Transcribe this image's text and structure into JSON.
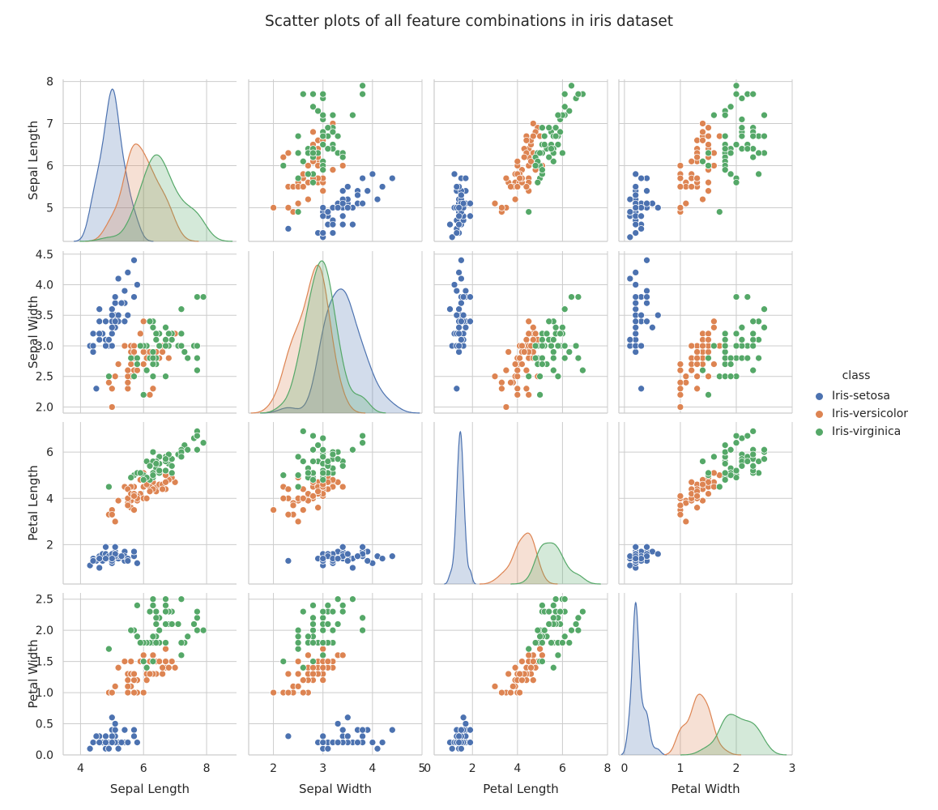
{
  "title": "Scatter plots of all feature combinations in iris dataset",
  "colors": {
    "background": "#ffffff",
    "grid": "#cccccc",
    "axis_text": "#262626",
    "Iris-setosa": "#4c72b0",
    "Iris-versicolor": "#dd8452",
    "Iris-virginica": "#55a868"
  },
  "legend": {
    "title": "class",
    "items": [
      {
        "label": "Iris-setosa",
        "color": "#4c72b0"
      },
      {
        "label": "Iris-versicolor",
        "color": "#dd8452"
      },
      {
        "label": "Iris-virginica",
        "color": "#55a868"
      }
    ]
  },
  "chart_data": {
    "type": "scatter",
    "title": "Scatter plots of all feature combinations in iris dataset",
    "variables": [
      "Sepal Length",
      "Sepal Width",
      "Petal Length",
      "Petal Width"
    ],
    "axis_ranges": [
      [
        3.45,
        8.95
      ],
      [
        1.5,
        5.0
      ],
      [
        0.3,
        8.0
      ],
      [
        -0.1,
        3.0
      ]
    ],
    "row_ranges": [
      [
        4.2,
        8.05
      ],
      [
        1.9,
        4.55
      ],
      [
        0.3,
        7.3
      ],
      [
        0.0,
        2.6
      ]
    ],
    "ticks": [
      [
        4,
        6,
        8
      ],
      [
        2,
        3,
        4,
        5
      ],
      [
        0,
        2,
        4,
        6,
        8
      ],
      [
        0,
        1,
        2,
        3
      ]
    ],
    "row_ticks": [
      [
        5,
        6,
        7,
        8
      ],
      [
        2.0,
        2.5,
        3.0,
        3.5,
        4.0,
        4.5
      ],
      [
        2,
        4,
        6
      ],
      [
        0.0,
        0.5,
        1.0,
        1.5,
        2.0,
        2.5
      ]
    ],
    "row_tick_labels": [
      [
        "5",
        "6",
        "7",
        "8"
      ],
      [
        "2.0",
        "2.5",
        "3.0",
        "3.5",
        "4.0",
        "4.5"
      ],
      [
        "2",
        "4",
        "6"
      ],
      [
        "0.0",
        "0.5",
        "1.0",
        "1.5",
        "2.0",
        "2.5"
      ]
    ],
    "diagonal": "kde",
    "classes": [
      "Iris-setosa",
      "Iris-versicolor",
      "Iris-virginica"
    ],
    "points": {
      "Iris-setosa": [
        [
          5.1,
          3.5,
          1.4,
          0.2
        ],
        [
          4.9,
          3.0,
          1.4,
          0.2
        ],
        [
          4.7,
          3.2,
          1.3,
          0.2
        ],
        [
          4.6,
          3.1,
          1.5,
          0.2
        ],
        [
          5.0,
          3.6,
          1.4,
          0.2
        ],
        [
          5.4,
          3.9,
          1.7,
          0.4
        ],
        [
          4.6,
          3.4,
          1.4,
          0.3
        ],
        [
          5.0,
          3.4,
          1.5,
          0.2
        ],
        [
          4.4,
          2.9,
          1.4,
          0.2
        ],
        [
          4.9,
          3.1,
          1.5,
          0.1
        ],
        [
          5.4,
          3.7,
          1.5,
          0.2
        ],
        [
          4.8,
          3.4,
          1.6,
          0.2
        ],
        [
          4.8,
          3.0,
          1.4,
          0.1
        ],
        [
          4.3,
          3.0,
          1.1,
          0.1
        ],
        [
          5.8,
          4.0,
          1.2,
          0.2
        ],
        [
          5.7,
          4.4,
          1.5,
          0.4
        ],
        [
          5.4,
          3.9,
          1.3,
          0.4
        ],
        [
          5.1,
          3.5,
          1.4,
          0.3
        ],
        [
          5.7,
          3.8,
          1.7,
          0.3
        ],
        [
          5.1,
          3.8,
          1.5,
          0.3
        ],
        [
          5.4,
          3.4,
          1.7,
          0.2
        ],
        [
          5.1,
          3.7,
          1.5,
          0.4
        ],
        [
          4.6,
          3.6,
          1.0,
          0.2
        ],
        [
          5.1,
          3.3,
          1.7,
          0.5
        ],
        [
          4.8,
          3.4,
          1.9,
          0.2
        ],
        [
          5.0,
          3.0,
          1.6,
          0.2
        ],
        [
          5.0,
          3.4,
          1.6,
          0.4
        ],
        [
          5.2,
          3.5,
          1.5,
          0.2
        ],
        [
          5.2,
          3.4,
          1.4,
          0.2
        ],
        [
          4.7,
          3.2,
          1.6,
          0.2
        ],
        [
          4.8,
          3.1,
          1.6,
          0.2
        ],
        [
          5.4,
          3.4,
          1.5,
          0.4
        ],
        [
          5.2,
          4.1,
          1.5,
          0.1
        ],
        [
          5.5,
          4.2,
          1.4,
          0.2
        ],
        [
          4.9,
          3.1,
          1.5,
          0.1
        ],
        [
          5.0,
          3.2,
          1.2,
          0.2
        ],
        [
          5.5,
          3.5,
          1.3,
          0.2
        ],
        [
          4.9,
          3.1,
          1.5,
          0.1
        ],
        [
          4.4,
          3.0,
          1.3,
          0.2
        ],
        [
          5.1,
          3.4,
          1.5,
          0.2
        ],
        [
          5.0,
          3.5,
          1.3,
          0.3
        ],
        [
          4.5,
          2.3,
          1.3,
          0.3
        ],
        [
          4.4,
          3.2,
          1.3,
          0.2
        ],
        [
          5.0,
          3.5,
          1.6,
          0.6
        ],
        [
          5.1,
          3.8,
          1.9,
          0.4
        ],
        [
          4.8,
          3.0,
          1.4,
          0.3
        ],
        [
          5.1,
          3.8,
          1.6,
          0.2
        ],
        [
          4.6,
          3.2,
          1.4,
          0.2
        ],
        [
          5.3,
          3.7,
          1.5,
          0.2
        ],
        [
          5.0,
          3.3,
          1.4,
          0.2
        ]
      ],
      "Iris-versicolor": [
        [
          7.0,
          3.2,
          4.7,
          1.4
        ],
        [
          6.4,
          3.2,
          4.5,
          1.5
        ],
        [
          6.9,
          3.1,
          4.9,
          1.5
        ],
        [
          5.5,
          2.3,
          4.0,
          1.3
        ],
        [
          6.5,
          2.8,
          4.6,
          1.5
        ],
        [
          5.7,
          2.8,
          4.5,
          1.3
        ],
        [
          6.3,
          3.3,
          4.7,
          1.6
        ],
        [
          4.9,
          2.4,
          3.3,
          1.0
        ],
        [
          6.6,
          2.9,
          4.6,
          1.3
        ],
        [
          5.2,
          2.7,
          3.9,
          1.4
        ],
        [
          5.0,
          2.0,
          3.5,
          1.0
        ],
        [
          5.9,
          3.0,
          4.2,
          1.5
        ],
        [
          6.0,
          2.2,
          4.0,
          1.0
        ],
        [
          6.1,
          2.9,
          4.7,
          1.4
        ],
        [
          5.6,
          2.9,
          3.6,
          1.3
        ],
        [
          6.7,
          3.1,
          4.4,
          1.4
        ],
        [
          5.6,
          3.0,
          4.5,
          1.5
        ],
        [
          5.8,
          2.7,
          4.1,
          1.0
        ],
        [
          6.2,
          2.2,
          4.5,
          1.5
        ],
        [
          5.6,
          2.5,
          3.9,
          1.1
        ],
        [
          5.9,
          3.2,
          4.8,
          1.8
        ],
        [
          6.1,
          2.8,
          4.0,
          1.3
        ],
        [
          6.3,
          2.5,
          4.9,
          1.5
        ],
        [
          6.1,
          2.8,
          4.7,
          1.2
        ],
        [
          6.4,
          2.9,
          4.3,
          1.3
        ],
        [
          6.6,
          3.0,
          4.4,
          1.4
        ],
        [
          6.8,
          2.8,
          4.8,
          1.4
        ],
        [
          6.7,
          3.0,
          5.0,
          1.7
        ],
        [
          6.0,
          2.9,
          4.5,
          1.5
        ],
        [
          5.7,
          2.6,
          3.5,
          1.0
        ],
        [
          5.5,
          2.4,
          3.8,
          1.1
        ],
        [
          5.5,
          2.4,
          3.7,
          1.0
        ],
        [
          5.8,
          2.7,
          3.9,
          1.2
        ],
        [
          6.0,
          2.7,
          5.1,
          1.6
        ],
        [
          5.4,
          3.0,
          4.5,
          1.5
        ],
        [
          6.0,
          3.4,
          4.5,
          1.6
        ],
        [
          6.7,
          3.1,
          4.7,
          1.5
        ],
        [
          6.3,
          2.3,
          4.4,
          1.3
        ],
        [
          5.6,
          3.0,
          4.1,
          1.3
        ],
        [
          5.5,
          2.5,
          4.0,
          1.3
        ],
        [
          5.5,
          2.6,
          4.4,
          1.2
        ],
        [
          6.1,
          3.0,
          4.6,
          1.4
        ],
        [
          5.8,
          2.6,
          4.0,
          1.2
        ],
        [
          5.0,
          2.3,
          3.3,
          1.0
        ],
        [
          5.6,
          2.7,
          4.2,
          1.3
        ],
        [
          5.7,
          3.0,
          4.2,
          1.2
        ],
        [
          5.7,
          2.9,
          4.2,
          1.3
        ],
        [
          6.2,
          2.9,
          4.3,
          1.3
        ],
        [
          5.1,
          2.5,
          3.0,
          1.1
        ],
        [
          5.7,
          2.8,
          4.1,
          1.3
        ]
      ],
      "Iris-virginica": [
        [
          6.3,
          3.3,
          6.0,
          2.5
        ],
        [
          5.8,
          2.7,
          5.1,
          1.9
        ],
        [
          7.1,
          3.0,
          5.9,
          2.1
        ],
        [
          6.3,
          2.9,
          5.6,
          1.8
        ],
        [
          6.5,
          3.0,
          5.8,
          2.2
        ],
        [
          7.6,
          3.0,
          6.6,
          2.1
        ],
        [
          4.9,
          2.5,
          4.5,
          1.7
        ],
        [
          7.3,
          2.9,
          6.3,
          1.8
        ],
        [
          6.7,
          2.5,
          5.8,
          1.8
        ],
        [
          7.2,
          3.6,
          6.1,
          2.5
        ],
        [
          6.5,
          3.2,
          5.1,
          2.0
        ],
        [
          6.4,
          2.7,
          5.3,
          1.9
        ],
        [
          6.8,
          3.0,
          5.5,
          2.1
        ],
        [
          5.7,
          2.5,
          5.0,
          2.0
        ],
        [
          5.8,
          2.8,
          5.1,
          2.4
        ],
        [
          6.4,
          3.2,
          5.3,
          2.3
        ],
        [
          6.5,
          3.0,
          5.5,
          1.8
        ],
        [
          7.7,
          3.8,
          6.7,
          2.2
        ],
        [
          7.7,
          2.6,
          6.9,
          2.3
        ],
        [
          6.0,
          2.2,
          5.0,
          1.5
        ],
        [
          6.9,
          3.2,
          5.7,
          2.3
        ],
        [
          5.6,
          2.8,
          4.9,
          2.0
        ],
        [
          7.7,
          2.8,
          6.7,
          2.0
        ],
        [
          6.3,
          2.7,
          4.9,
          1.8
        ],
        [
          6.7,
          3.3,
          5.7,
          2.1
        ],
        [
          7.2,
          3.2,
          6.0,
          1.8
        ],
        [
          6.2,
          2.8,
          4.8,
          1.8
        ],
        [
          6.1,
          3.0,
          4.9,
          1.8
        ],
        [
          6.4,
          2.8,
          5.6,
          2.1
        ],
        [
          7.2,
          3.0,
          5.8,
          1.6
        ],
        [
          7.4,
          2.8,
          6.1,
          1.9
        ],
        [
          7.9,
          3.8,
          6.4,
          2.0
        ],
        [
          6.4,
          2.8,
          5.6,
          2.2
        ],
        [
          6.3,
          2.8,
          5.1,
          1.5
        ],
        [
          6.1,
          2.6,
          5.6,
          1.4
        ],
        [
          7.7,
          3.0,
          6.1,
          2.3
        ],
        [
          6.3,
          3.4,
          5.6,
          2.4
        ],
        [
          6.4,
          3.1,
          5.5,
          1.8
        ],
        [
          6.0,
          3.0,
          4.8,
          1.8
        ],
        [
          6.9,
          3.1,
          5.4,
          2.1
        ],
        [
          6.7,
          3.1,
          5.6,
          2.4
        ],
        [
          6.9,
          3.1,
          5.1,
          2.3
        ],
        [
          5.8,
          2.7,
          5.1,
          1.9
        ],
        [
          6.8,
          3.2,
          5.9,
          2.3
        ],
        [
          6.7,
          3.3,
          5.7,
          2.5
        ],
        [
          6.7,
          3.0,
          5.2,
          2.3
        ],
        [
          6.3,
          2.5,
          5.0,
          1.9
        ],
        [
          6.5,
          3.0,
          5.2,
          2.0
        ],
        [
          6.2,
          3.4,
          5.4,
          2.3
        ],
        [
          5.9,
          3.0,
          5.1,
          1.8
        ]
      ]
    }
  }
}
